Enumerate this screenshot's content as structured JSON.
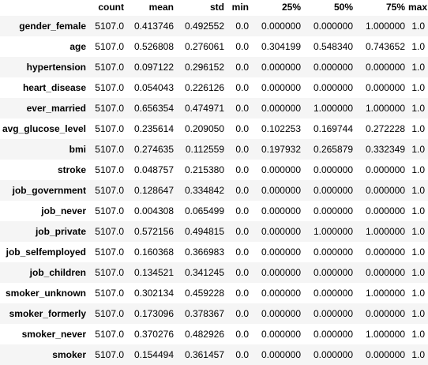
{
  "table": {
    "columns": [
      "count",
      "mean",
      "std",
      "min",
      "25%",
      "50%",
      "75%",
      "max"
    ],
    "rows": [
      {
        "label": "gender_female",
        "cells": [
          "5107.0",
          "0.413746",
          "0.492552",
          "0.0",
          "0.000000",
          "0.000000",
          "1.000000",
          "1.0"
        ]
      },
      {
        "label": "age",
        "cells": [
          "5107.0",
          "0.526808",
          "0.276061",
          "0.0",
          "0.304199",
          "0.548340",
          "0.743652",
          "1.0"
        ]
      },
      {
        "label": "hypertension",
        "cells": [
          "5107.0",
          "0.097122",
          "0.296152",
          "0.0",
          "0.000000",
          "0.000000",
          "0.000000",
          "1.0"
        ]
      },
      {
        "label": "heart_disease",
        "cells": [
          "5107.0",
          "0.054043",
          "0.226126",
          "0.0",
          "0.000000",
          "0.000000",
          "0.000000",
          "1.0"
        ]
      },
      {
        "label": "ever_married",
        "cells": [
          "5107.0",
          "0.656354",
          "0.474971",
          "0.0",
          "0.000000",
          "1.000000",
          "1.000000",
          "1.0"
        ]
      },
      {
        "label": "avg_glucose_level",
        "cells": [
          "5107.0",
          "0.235614",
          "0.209050",
          "0.0",
          "0.102253",
          "0.169744",
          "0.272228",
          "1.0"
        ]
      },
      {
        "label": "bmi",
        "cells": [
          "5107.0",
          "0.274635",
          "0.112559",
          "0.0",
          "0.197932",
          "0.265879",
          "0.332349",
          "1.0"
        ]
      },
      {
        "label": "stroke",
        "cells": [
          "5107.0",
          "0.048757",
          "0.215380",
          "0.0",
          "0.000000",
          "0.000000",
          "0.000000",
          "1.0"
        ]
      },
      {
        "label": "job_government",
        "cells": [
          "5107.0",
          "0.128647",
          "0.334842",
          "0.0",
          "0.000000",
          "0.000000",
          "0.000000",
          "1.0"
        ]
      },
      {
        "label": "job_never",
        "cells": [
          "5107.0",
          "0.004308",
          "0.065499",
          "0.0",
          "0.000000",
          "0.000000",
          "0.000000",
          "1.0"
        ]
      },
      {
        "label": "job_private",
        "cells": [
          "5107.0",
          "0.572156",
          "0.494815",
          "0.0",
          "0.000000",
          "1.000000",
          "1.000000",
          "1.0"
        ]
      },
      {
        "label": "job_selfemployed",
        "cells": [
          "5107.0",
          "0.160368",
          "0.366983",
          "0.0",
          "0.000000",
          "0.000000",
          "0.000000",
          "1.0"
        ]
      },
      {
        "label": "job_children",
        "cells": [
          "5107.0",
          "0.134521",
          "0.341245",
          "0.0",
          "0.000000",
          "0.000000",
          "0.000000",
          "1.0"
        ]
      },
      {
        "label": "smoker_unknown",
        "cells": [
          "5107.0",
          "0.302134",
          "0.459228",
          "0.0",
          "0.000000",
          "0.000000",
          "1.000000",
          "1.0"
        ]
      },
      {
        "label": "smoker_formerly",
        "cells": [
          "5107.0",
          "0.173096",
          "0.378367",
          "0.0",
          "0.000000",
          "0.000000",
          "0.000000",
          "1.0"
        ]
      },
      {
        "label": "smoker_never",
        "cells": [
          "5107.0",
          "0.370276",
          "0.482926",
          "0.0",
          "0.000000",
          "0.000000",
          "1.000000",
          "1.0"
        ]
      },
      {
        "label": "smoker",
        "cells": [
          "5107.0",
          "0.154494",
          "0.361457",
          "0.0",
          "0.000000",
          "0.000000",
          "0.000000",
          "1.0"
        ]
      }
    ]
  },
  "colors": {
    "stripe": "#f5f5f5",
    "background": "#ffffff",
    "text": "#000000"
  }
}
